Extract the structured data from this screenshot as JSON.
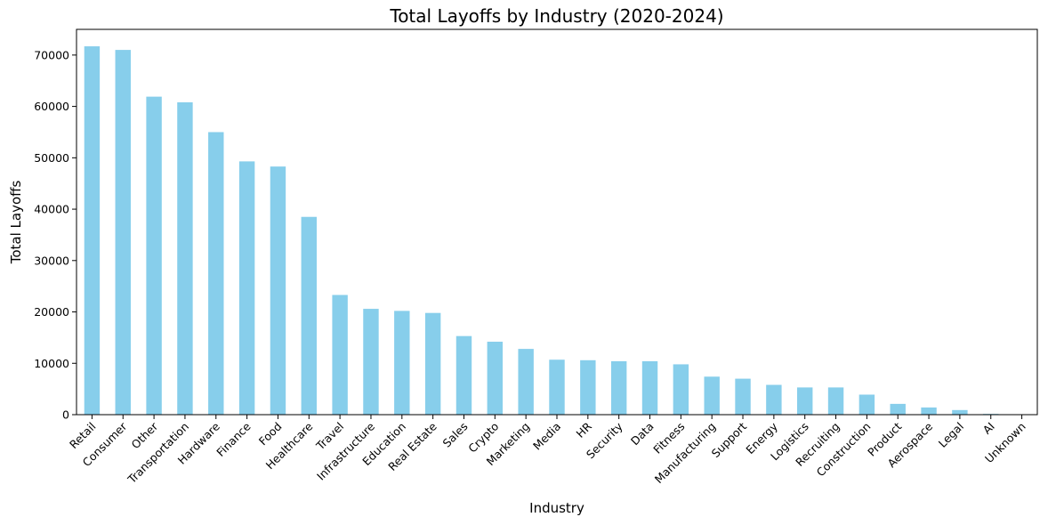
{
  "chart_data": {
    "type": "bar",
    "title": "Total Layoffs by Industry (2020-2024)",
    "xlabel": "Industry",
    "ylabel": "Total Layoffs",
    "ylim": [
      0,
      75000
    ],
    "yticks": [
      0,
      10000,
      20000,
      30000,
      40000,
      50000,
      60000,
      70000
    ],
    "grid": false,
    "legend": "none",
    "bar_color": "#87CEEB",
    "categories": [
      "Retail",
      "Consumer",
      "Other",
      "Transportation",
      "Hardware",
      "Finance",
      "Food",
      "Healthcare",
      "Travel",
      "Infrastructure",
      "Education",
      "Real Estate",
      "Sales",
      "Crypto",
      "Marketing",
      "Media",
      "HR",
      "Security",
      "Data",
      "Fitness",
      "Manufacturing",
      "Support",
      "Energy",
      "Logistics",
      "Recruiting",
      "Construction",
      "Product",
      "Aerospace",
      "Legal",
      "AI",
      "Unknown"
    ],
    "values": [
      71700,
      71000,
      61900,
      60800,
      55000,
      49300,
      48300,
      38500,
      23300,
      20600,
      20200,
      19800,
      15300,
      14200,
      12800,
      10700,
      10600,
      10400,
      10400,
      9800,
      7400,
      7000,
      5800,
      5300,
      5300,
      3900,
      2100,
      1400,
      900,
      150,
      0
    ]
  }
}
